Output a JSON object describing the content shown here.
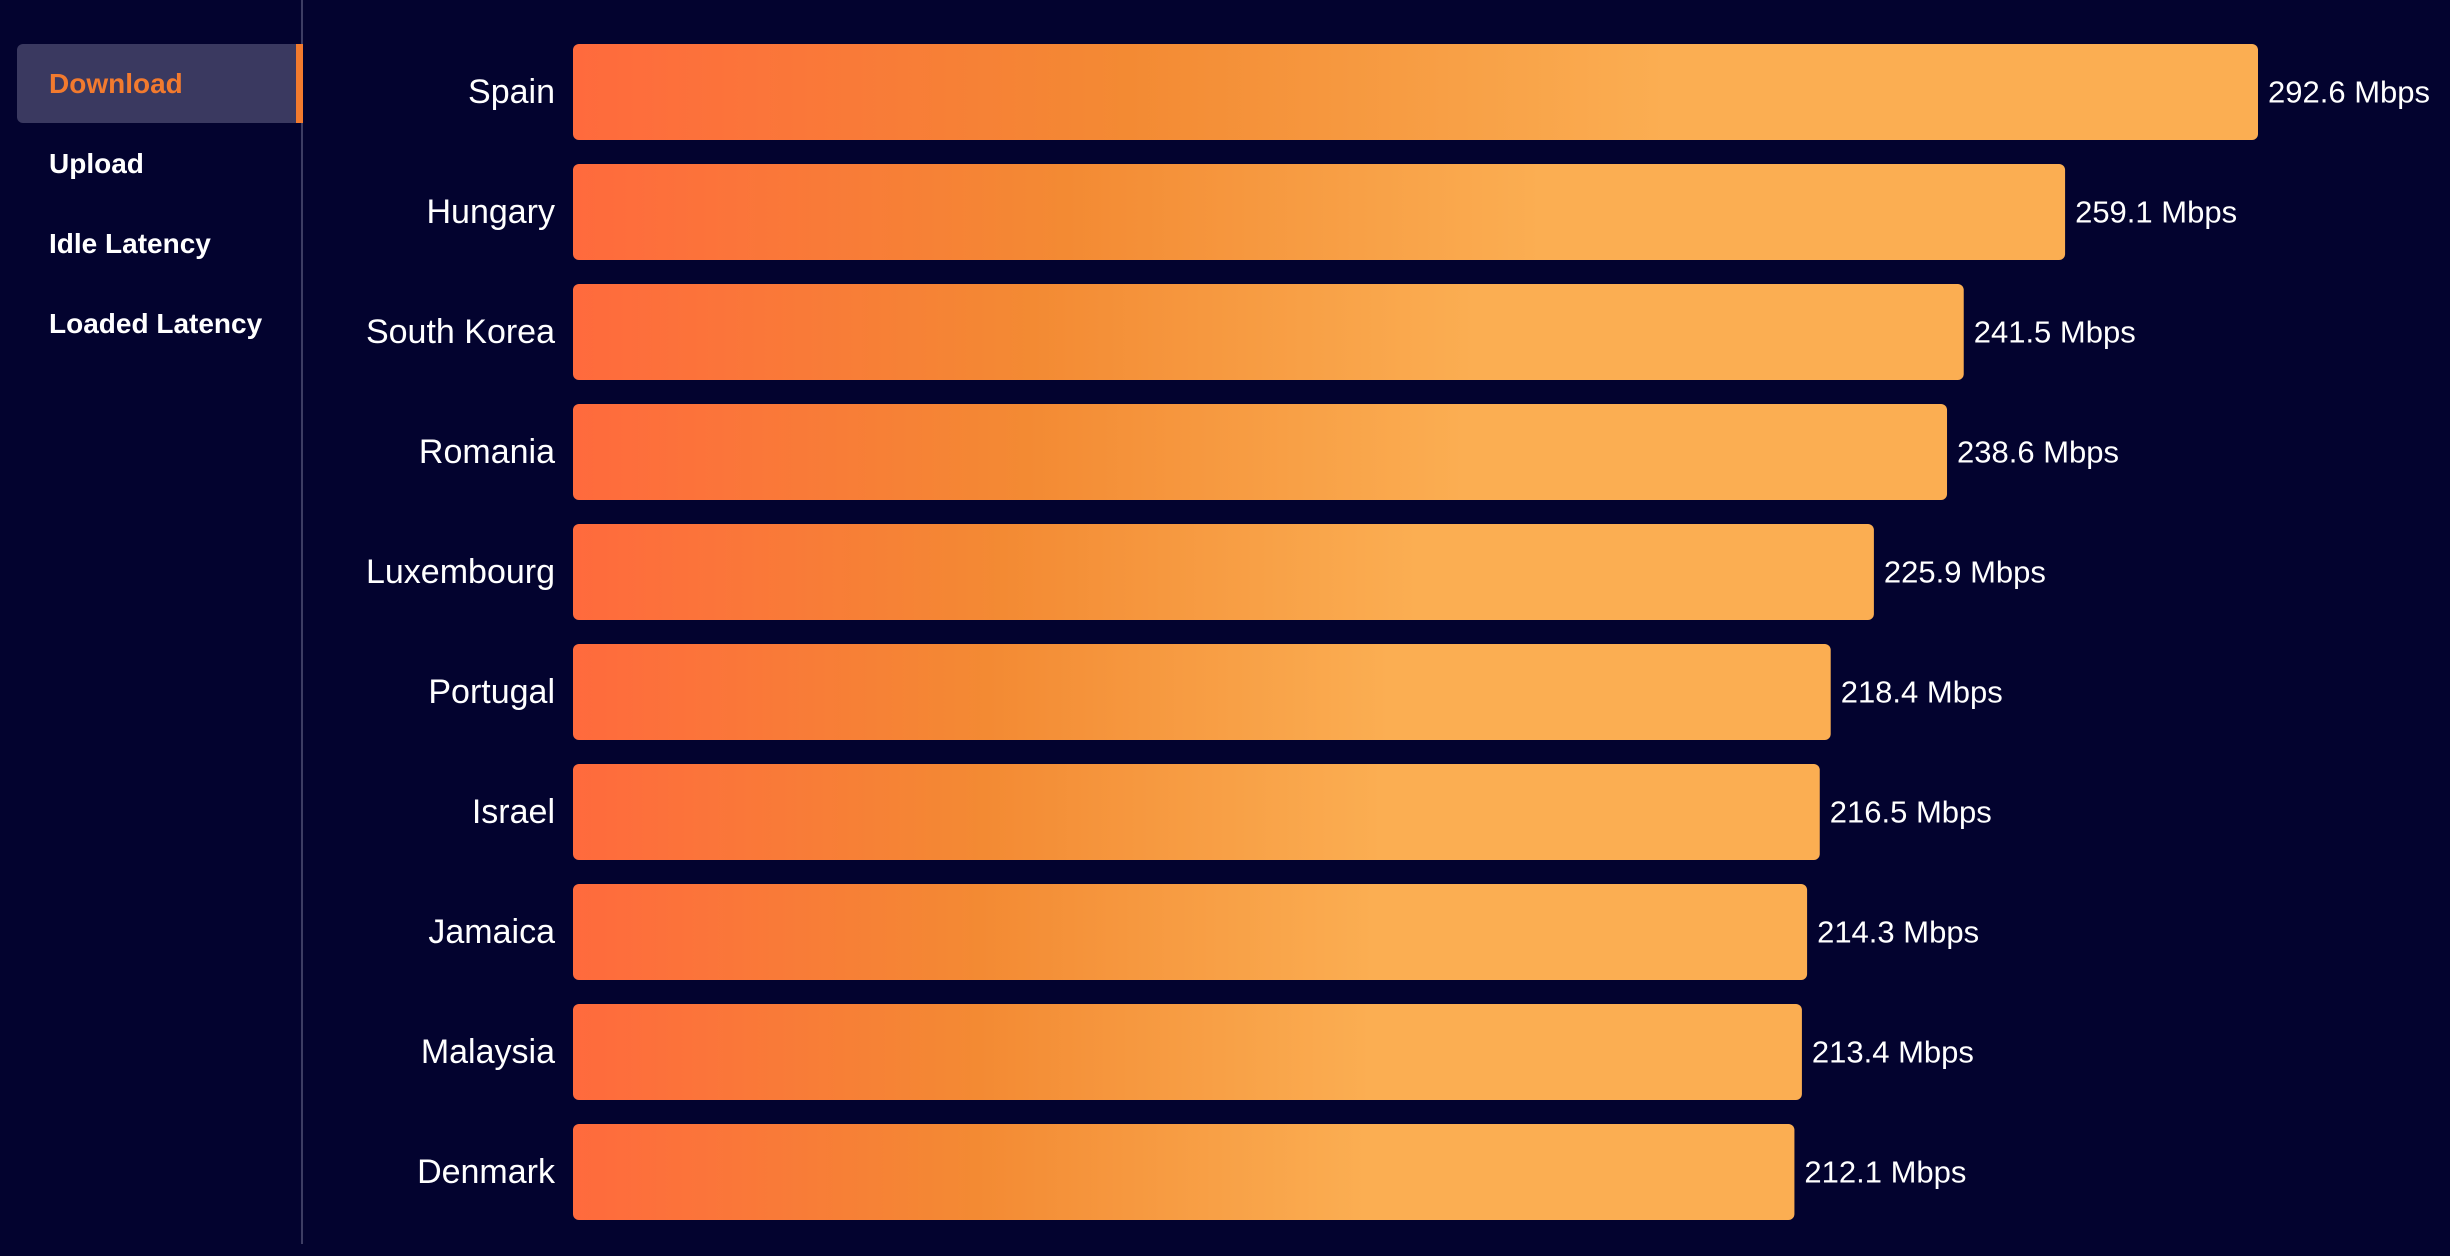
{
  "sidebar": {
    "items": [
      {
        "label": "Download",
        "active": true
      },
      {
        "label": "Upload",
        "active": false
      },
      {
        "label": "Idle Latency",
        "active": false
      },
      {
        "label": "Loaded Latency",
        "active": false
      }
    ]
  },
  "colors": {
    "background": "#03032f",
    "accent": "#f27a2e",
    "bar_start": "#ff6a3d",
    "bar_mid": "#f38a33",
    "bar_end": "#fbae52"
  },
  "chart_data": {
    "type": "bar",
    "orientation": "horizontal",
    "categories": [
      "Spain",
      "Hungary",
      "South Korea",
      "Romania",
      "Luxembourg",
      "Portugal",
      "Israel",
      "Jamaica",
      "Malaysia",
      "Denmark"
    ],
    "values": [
      292.6,
      259.1,
      241.5,
      238.6,
      225.9,
      218.4,
      216.5,
      214.3,
      213.4,
      212.1
    ],
    "value_labels": [
      "292.6 Mbps",
      "259.1 Mbps",
      "241.5 Mbps",
      "238.6 Mbps",
      "225.9 Mbps",
      "218.4 Mbps",
      "216.5 Mbps",
      "214.3 Mbps",
      "213.4 Mbps",
      "212.1 Mbps"
    ],
    "unit": "Mbps",
    "xlim": [
      0,
      292.6
    ],
    "grid": false,
    "legend": "none"
  }
}
